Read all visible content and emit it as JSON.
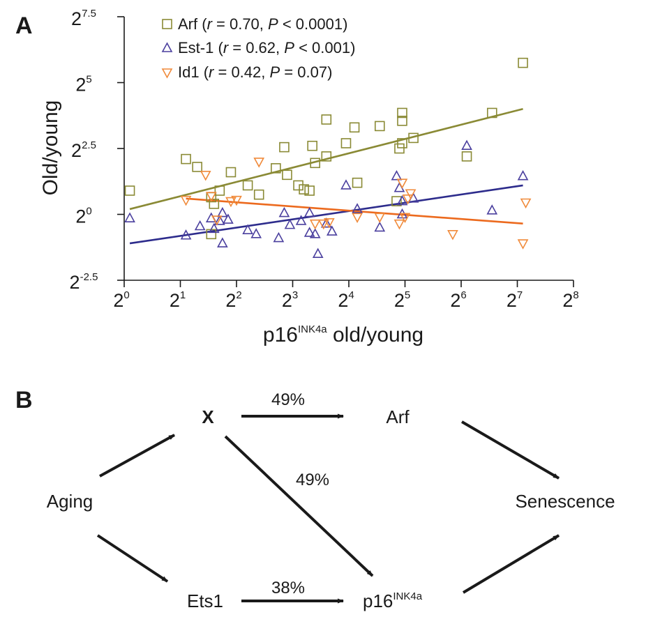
{
  "panel_a": {
    "letter": "A",
    "chart_data": {
      "type": "scatter",
      "xlabel": "p16",
      "xlabel_sup": "INK4a",
      "xlabel_suffix": " old/young",
      "ylabel": "Old/young",
      "x_scale": "log2",
      "y_scale": "log2",
      "xlim_exponent": [
        0,
        8
      ],
      "ylim_exponent": [
        -2.5,
        7.5
      ],
      "x_tick_exponents": [
        0,
        1,
        2,
        3,
        4,
        5,
        6,
        7,
        8
      ],
      "y_tick_exponents": [
        -2.5,
        0,
        2.5,
        5,
        7.5
      ],
      "x_tick_base": "2",
      "x_tick_sups": [
        "0",
        "1",
        "2",
        "3",
        "4",
        "5",
        "6",
        "7",
        "8"
      ],
      "y_tick_base": "2",
      "y_tick_sups": [
        "-2.5",
        "0",
        "2.5",
        "5",
        "7.5"
      ],
      "grid": false,
      "legend_position": "top-left",
      "series": [
        {
          "name": "Arf",
          "legend_stats": "(r = 0.70, P < 0.0001)",
          "legend_r": "r",
          "legend_mid": " = 0.70, ",
          "legend_p": "P",
          "legend_tail": " < 0.0001)",
          "marker": "square",
          "color": "#8a8a35",
          "fit_line_color": "#8a8a35",
          "fit_line_log2": [
            [
              0.1,
              0.2
            ],
            [
              7.1,
              4.0
            ]
          ],
          "points_log2": [
            [
              0.1,
              0.9
            ],
            [
              1.1,
              2.1
            ],
            [
              1.3,
              1.8
            ],
            [
              1.7,
              0.9
            ],
            [
              1.9,
              1.6
            ],
            [
              2.2,
              1.1
            ],
            [
              2.4,
              0.75
            ],
            [
              2.7,
              1.75
            ],
            [
              2.85,
              2.55
            ],
            [
              2.9,
              1.5
            ],
            [
              3.1,
              1.1
            ],
            [
              3.2,
              0.95
            ],
            [
              3.3,
              0.9
            ],
            [
              3.35,
              2.6
            ],
            [
              3.4,
              1.95
            ],
            [
              3.6,
              3.6
            ],
            [
              3.6,
              2.2
            ],
            [
              3.95,
              2.7
            ],
            [
              4.1,
              3.3
            ],
            [
              4.15,
              1.2
            ],
            [
              4.55,
              3.35
            ],
            [
              4.85,
              0.5
            ],
            [
              4.9,
              2.5
            ],
            [
              4.95,
              3.55
            ],
            [
              4.95,
              2.7
            ],
            [
              4.95,
              3.85
            ],
            [
              5.15,
              2.9
            ],
            [
              6.1,
              2.2
            ],
            [
              6.55,
              3.85
            ],
            [
              7.1,
              5.75
            ],
            [
              1.6,
              0.4
            ],
            [
              1.55,
              0.65
            ],
            [
              1.55,
              -0.75
            ]
          ]
        },
        {
          "name": "Est-1",
          "legend_stats": "(r = 0.62, P < 0.001)",
          "legend_r": "r",
          "legend_mid": " = 0.62, ",
          "legend_p": "P",
          "legend_tail": " < 0.001)",
          "marker": "triangle-up",
          "color": "#4a3f9e",
          "fit_line_color": "#2d2c8c",
          "fit_line_log2": [
            [
              0.1,
              -1.1
            ],
            [
              7.1,
              1.1
            ]
          ],
          "points_log2": [
            [
              0.1,
              -0.15
            ],
            [
              1.1,
              -0.8
            ],
            [
              1.35,
              -0.45
            ],
            [
              1.55,
              -0.15
            ],
            [
              1.6,
              -0.55
            ],
            [
              1.7,
              -0.25
            ],
            [
              1.75,
              0.05
            ],
            [
              1.75,
              -1.1
            ],
            [
              1.85,
              -0.2
            ],
            [
              2.2,
              -0.6
            ],
            [
              2.35,
              -0.75
            ],
            [
              2.75,
              -0.9
            ],
            [
              2.85,
              0.05
            ],
            [
              2.95,
              -0.4
            ],
            [
              3.15,
              -0.25
            ],
            [
              3.3,
              0.05
            ],
            [
              3.3,
              -0.7
            ],
            [
              3.4,
              -0.75
            ],
            [
              3.45,
              -1.5
            ],
            [
              3.6,
              -0.35
            ],
            [
              3.7,
              -0.65
            ],
            [
              3.95,
              1.1
            ],
            [
              4.15,
              0.2
            ],
            [
              4.55,
              -0.5
            ],
            [
              4.85,
              1.45
            ],
            [
              4.9,
              1.0
            ],
            [
              4.95,
              0.0
            ],
            [
              4.95,
              0.5
            ],
            [
              5.15,
              0.6
            ],
            [
              6.1,
              2.6
            ],
            [
              6.55,
              0.15
            ],
            [
              7.1,
              1.45
            ]
          ]
        },
        {
          "name": "Id1",
          "legend_stats": "(r = 0.42, P = 0.07)",
          "legend_r": "r",
          "legend_mid": " = 0.42, ",
          "legend_p": "P",
          "legend_tail": " = 0.07)",
          "marker": "triangle-down",
          "color": "#f08a3a",
          "fit_line_color": "#ec6a1e",
          "fit_line_log2": [
            [
              1.1,
              0.6
            ],
            [
              7.1,
              -0.35
            ]
          ],
          "points_log2": [
            [
              1.1,
              0.55
            ],
            [
              1.45,
              1.5
            ],
            [
              1.55,
              0.7
            ],
            [
              1.65,
              -0.2
            ],
            [
              1.9,
              0.5
            ],
            [
              2.0,
              0.55
            ],
            [
              2.4,
              2.0
            ],
            [
              3.4,
              -0.35
            ],
            [
              3.55,
              -0.35
            ],
            [
              3.65,
              -0.3
            ],
            [
              4.15,
              -0.1
            ],
            [
              4.55,
              -0.1
            ],
            [
              4.9,
              -0.35
            ],
            [
              4.95,
              1.2
            ],
            [
              5.0,
              -0.1
            ],
            [
              5.1,
              0.8
            ],
            [
              5.05,
              0.6
            ],
            [
              5.85,
              -0.75
            ],
            [
              7.15,
              0.45
            ],
            [
              7.1,
              -1.1
            ]
          ]
        }
      ]
    }
  },
  "panel_b": {
    "letter": "B",
    "nodes": {
      "x": "X",
      "arf": "Arf",
      "aging": "Aging",
      "senescence": "Senescence",
      "ets1": "Ets1",
      "p16": "p16",
      "p16_sup": "INK4a"
    },
    "edge_labels": {
      "x_to_arf": "49%",
      "x_to_p16": "49%",
      "ets1_to_p16": "38%"
    }
  }
}
